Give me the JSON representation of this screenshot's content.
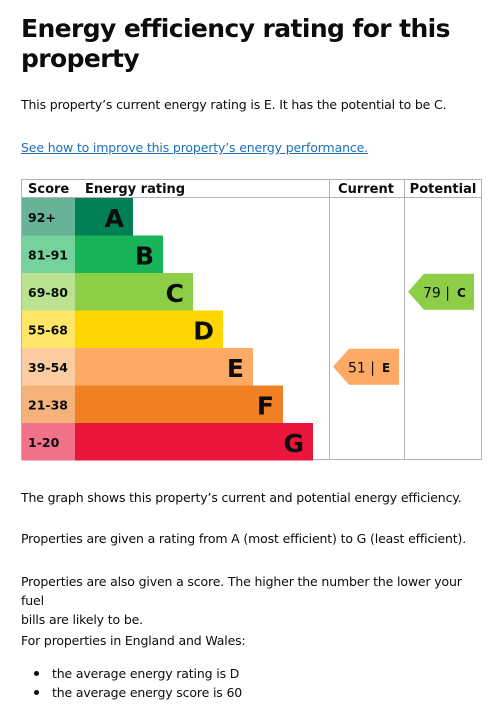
{
  "heading": "Energy efficiency rating for this property",
  "intro": "This property’s current energy rating is E. It has the potential to be C.",
  "improve_link": "See how to improve this property’s energy performance.",
  "chart_data": {
    "type": "table",
    "headers": {
      "score": "Score",
      "rating": "Energy rating",
      "current": "Current",
      "potential": "Potential"
    },
    "bands": [
      {
        "score": "92+",
        "letter": "A",
        "color": "#008054",
        "score_bg": "#66b398"
      },
      {
        "score": "81-91",
        "letter": "B",
        "color": "#19b459",
        "score_bg": "#75d29b"
      },
      {
        "score": "69-80",
        "letter": "C",
        "color": "#8dce46",
        "score_bg": "#bbe290"
      },
      {
        "score": "55-68",
        "letter": "D",
        "color": "#ffd500",
        "score_bg": "#ffe666"
      },
      {
        "score": "39-54",
        "letter": "E",
        "color": "#fcaa65",
        "score_bg": "#fdcca3"
      },
      {
        "score": "21-38",
        "letter": "F",
        "color": "#ef8023",
        "score_bg": "#f5b37b"
      },
      {
        "score": "1-20",
        "letter": "G",
        "color": "#e9153b",
        "score_bg": "#f27389"
      }
    ],
    "current": {
      "score": 51,
      "letter": "E",
      "label": "51 |",
      "color": "#fcaa65"
    },
    "potential": {
      "score": 79,
      "letter": "C",
      "label": "79 |",
      "color": "#8dce46"
    }
  },
  "graph_text": "The graph shows this property’s current and potential energy efficiency.",
  "rating_text": "Properties are given a rating from A (most efficient) to G (least efficient).",
  "score_text_1": "Properties are also given a score. The higher the number the lower your fuel",
  "score_text_2": "bills are likely to be.",
  "region_text": "For properties in England and Wales:",
  "bullets": [
    "the average energy rating is D",
    "the average energy score is 60"
  ]
}
